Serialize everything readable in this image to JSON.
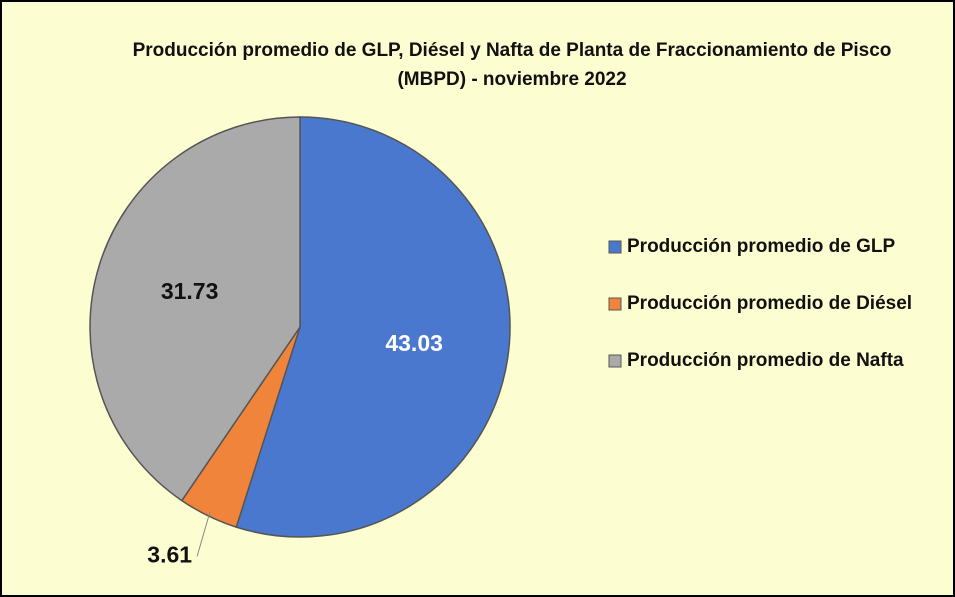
{
  "chart_data": {
    "type": "pie",
    "title": "Producción promedio de GLP, Diésel y Nafta de Planta de Fraccionamiento de Pisco (MBPD) - noviembre 2022",
    "categories": [
      "Producción promedio de GLP",
      "Producción promedio de Diésel",
      "Producción promedio de Nafta"
    ],
    "values": [
      43.03,
      3.61,
      31.73
    ],
    "colors": [
      "#4a78cf",
      "#f0843a",
      "#aaaaaa"
    ],
    "legend": "right"
  }
}
